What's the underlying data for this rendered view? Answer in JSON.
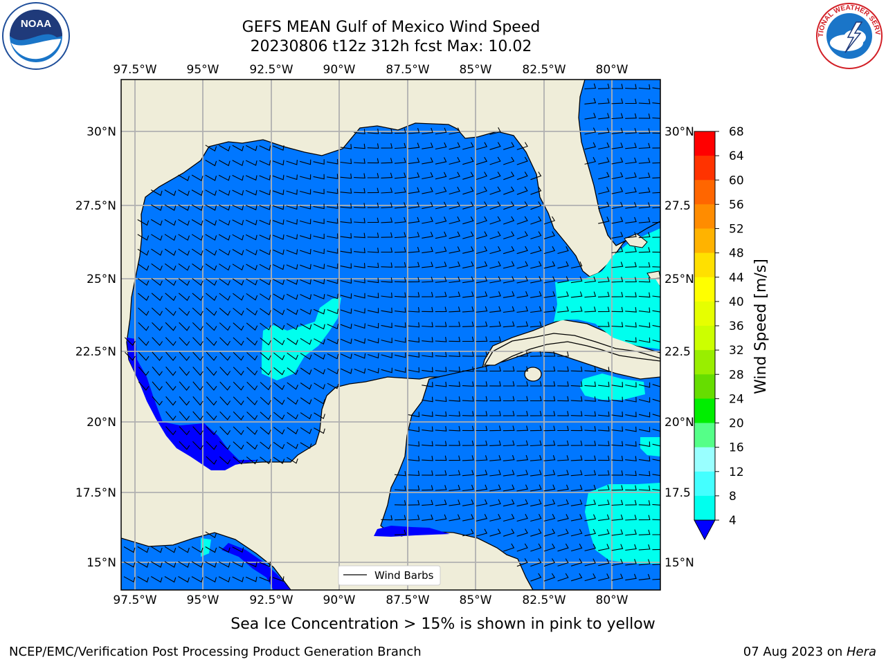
{
  "title_line1": "GEFS MEAN Gulf of Mexico Wind Speed",
  "title_line2": "20230806 t12z 312h fcst   Max: 10.02",
  "lon_labels": [
    "97.5°W",
    "95°W",
    "92.5°W",
    "90°W",
    "87.5°W",
    "85°W",
    "82.5°W",
    "80°W"
  ],
  "lat_labels_left": [
    "30°N",
    "27.5°N",
    "25°N",
    "22.5°N",
    "20°N",
    "17.5°N",
    "15°N"
  ],
  "lat_labels_right": [
    "30°N",
    "27.5",
    "25°N",
    "22.5",
    "20°N",
    "17.5",
    "15°N"
  ],
  "legend_label": "Wind Barbs",
  "colorbar": {
    "label": "Wind Speed [m/s]",
    "ticks": [
      "68",
      "64",
      "60",
      "56",
      "52",
      "48",
      "44",
      "40",
      "36",
      "32",
      "28",
      "24",
      "20",
      "16",
      "12",
      "8",
      "4"
    ],
    "colors": [
      "#ff0000",
      "#ff3300",
      "#ff6600",
      "#ff8c00",
      "#ffb300",
      "#ffe000",
      "#ffff00",
      "#e6ff00",
      "#ccff00",
      "#99ee00",
      "#66dd00",
      "#00ee00",
      "#55ff88",
      "#99ffff",
      "#44ffff",
      "#00ffee",
      "#007fff"
    ],
    "under_color": "#0000ff"
  },
  "colors": {
    "land": "#efedd9",
    "ocean_4_8": "#0077ff",
    "ocean_8_12": "#00ffee",
    "ocean_under_4": "#0000ff"
  },
  "subcaption": "Sea Ice Concentration > 15% is shown in pink to yellow",
  "credit": "NCEP/EMC/Verification Post Processing Product Generation Branch",
  "date_text": "07 Aug 2023 on ",
  "date_host": "Hera",
  "logos": {
    "noaa": "NOAA",
    "nws": "NATIONAL WEATHER SERVICE"
  }
}
